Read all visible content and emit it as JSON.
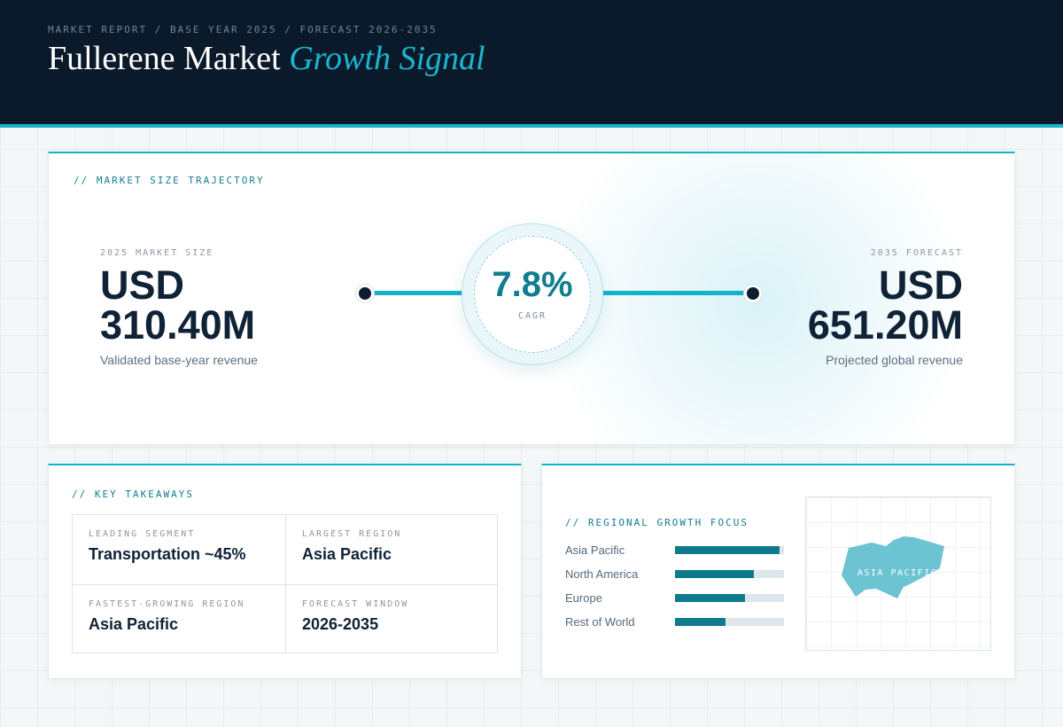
{
  "header": {
    "breadcrumb": "MARKET REPORT / BASE YEAR 2025 / FORECAST 2026-2035",
    "title_main": "Fullerene Market",
    "title_accent": "Growth Signal"
  },
  "trajectory": {
    "section_label": "// MARKET SIZE TRAJECTORY",
    "start": {
      "label": "2025 MARKET SIZE",
      "currency": "USD",
      "value": "310.40M",
      "caption": "Validated base-year revenue"
    },
    "end": {
      "label": "2035 FORECAST",
      "currency": "USD",
      "value": "651.20M",
      "caption": "Projected global revenue"
    },
    "cagr": {
      "value": "7.8%",
      "label": "CAGR"
    }
  },
  "takeaways": {
    "section_label": "// KEY TAKEAWAYS",
    "items": [
      {
        "label": "LEADING SEGMENT",
        "value": "Transportation ~45%"
      },
      {
        "label": "LARGEST REGION",
        "value": "Asia Pacific"
      },
      {
        "label": "FASTEST-GROWING REGION",
        "value": "Asia Pacific"
      },
      {
        "label": "FORECAST WINDOW",
        "value": "2026-2035"
      }
    ]
  },
  "regional": {
    "section_label": "// REGIONAL GROWTH FOCUS",
    "map_label": "ASIA PACIFIC"
  },
  "chart_data": {
    "type": "bar",
    "orientation": "horizontal",
    "categories": [
      "Asia Pacific",
      "North America",
      "Europe",
      "Rest of World"
    ],
    "values": [
      0.96,
      0.72,
      0.64,
      0.46
    ],
    "xlim": [
      0,
      1
    ],
    "title": "",
    "xlabel": "",
    "ylabel": "",
    "grid": false,
    "colors": {
      "fill": "#0f7a8d",
      "track": "#dce6ec"
    }
  },
  "colors": {
    "accent": "#14b3cc",
    "navy": "#0a1a2a",
    "teal": "#0f7a8d",
    "map_highlight": "#6cc3d1"
  },
  "icons": {
    "start_marker": "dot-icon",
    "end_marker": "dot-icon",
    "map": "asia-pacific-map-icon"
  }
}
